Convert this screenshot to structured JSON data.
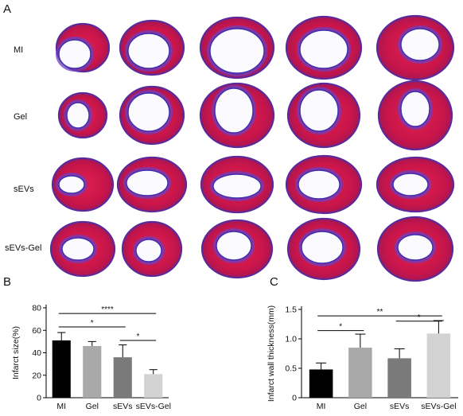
{
  "panels": {
    "a": "A",
    "b": "B",
    "c": "C"
  },
  "rows": [
    "MI",
    "Gel",
    "sEVs",
    "sEVs-Gel"
  ],
  "chart_data": [
    {
      "type": "bar",
      "categories": [
        "MI",
        "Gel",
        "sEVs",
        "sEVs-Gel"
      ],
      "values": [
        51,
        46,
        36,
        21
      ],
      "errors": [
        7,
        4,
        11,
        4
      ],
      "ylabel": "Infarct size(%)",
      "ylim": [
        0,
        80
      ],
      "yticks": [
        "0",
        "20",
        "40",
        "60",
        "80"
      ],
      "colors": [
        "#000000",
        "#a9a9a9",
        "#7a7a7a",
        "#d3d3d3"
      ],
      "significance": [
        {
          "from": "MI",
          "to": "sEVs-Gel",
          "label": "****"
        },
        {
          "from": "MI",
          "to": "sEVs",
          "label": "*"
        },
        {
          "from": "sEVs",
          "to": "sEVs-Gel",
          "label": "*"
        }
      ]
    },
    {
      "type": "bar",
      "categories": [
        "MI",
        "Gel",
        "sEVs",
        "sEVs-Gel"
      ],
      "values": [
        0.48,
        0.85,
        0.67,
        1.09
      ],
      "errors": [
        0.11,
        0.23,
        0.16,
        0.22
      ],
      "ylabel": "Infarct wall thickness(mm)",
      "ylim": [
        0,
        1.5
      ],
      "yticks": [
        "0",
        "0.5",
        "1.0",
        "1.5"
      ],
      "colors": [
        "#000000",
        "#a9a9a9",
        "#7a7a7a",
        "#d3d3d3"
      ],
      "significance": [
        {
          "from": "MI",
          "to": "sEVs-Gel",
          "label": "**"
        },
        {
          "from": "MI",
          "to": "Gel",
          "label": "*"
        },
        {
          "from": "sEVs",
          "to": "sEVs-Gel",
          "label": "*"
        }
      ]
    }
  ]
}
